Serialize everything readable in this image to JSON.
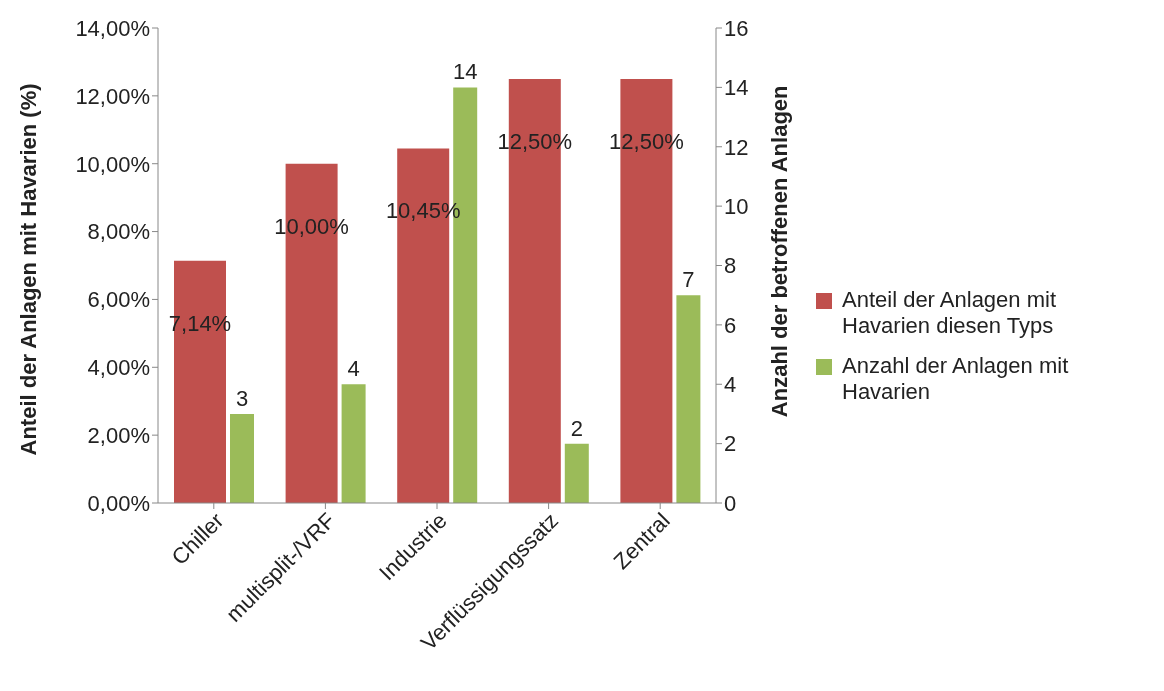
{
  "chart_data": {
    "type": "bar",
    "categories": [
      "Chiller",
      "multisplit-/VRF",
      "Industrie",
      "Verflüssigungssatz",
      "Zentral"
    ],
    "ylabel": "Anteil der Anlagen mit Havarien (%)",
    "y2label": "Anzahl der betroffenen Anlagen",
    "series": [
      {
        "name": "Anteil der Anlagen mit Havarien diesen Typs",
        "color": "#c0504d",
        "values": [
          7.14,
          10.0,
          10.45,
          12.5,
          12.5
        ],
        "value_labels": [
          "7,14%",
          "10,00%",
          "10,45%",
          "12,50%",
          "12,50%"
        ]
      },
      {
        "name": "Anzahl der Anlagen mit Havarien",
        "color": "#9bbb59",
        "axis": "y2",
        "values": [
          3,
          4,
          14,
          2,
          7
        ],
        "value_labels": [
          "3",
          "4",
          "14",
          "2",
          "7"
        ]
      }
    ],
    "ylim": [
      0,
      14
    ],
    "yticks": [
      {
        "value": 0,
        "label": "0,00%"
      },
      {
        "value": 2,
        "label": "2,00%"
      },
      {
        "value": 4,
        "label": "4,00%"
      },
      {
        "value": 6,
        "label": "6,00%"
      },
      {
        "value": 8,
        "label": "8,00%"
      },
      {
        "value": 10,
        "label": "10,00%"
      },
      {
        "value": 12,
        "label": "12,00%"
      },
      {
        "value": 14,
        "label": "14,00%"
      }
    ],
    "y2lim": [
      0,
      16
    ],
    "y2ticks": [
      0,
      2,
      4,
      6,
      8,
      10,
      12,
      14,
      16
    ],
    "grid": false,
    "legend": "right"
  }
}
